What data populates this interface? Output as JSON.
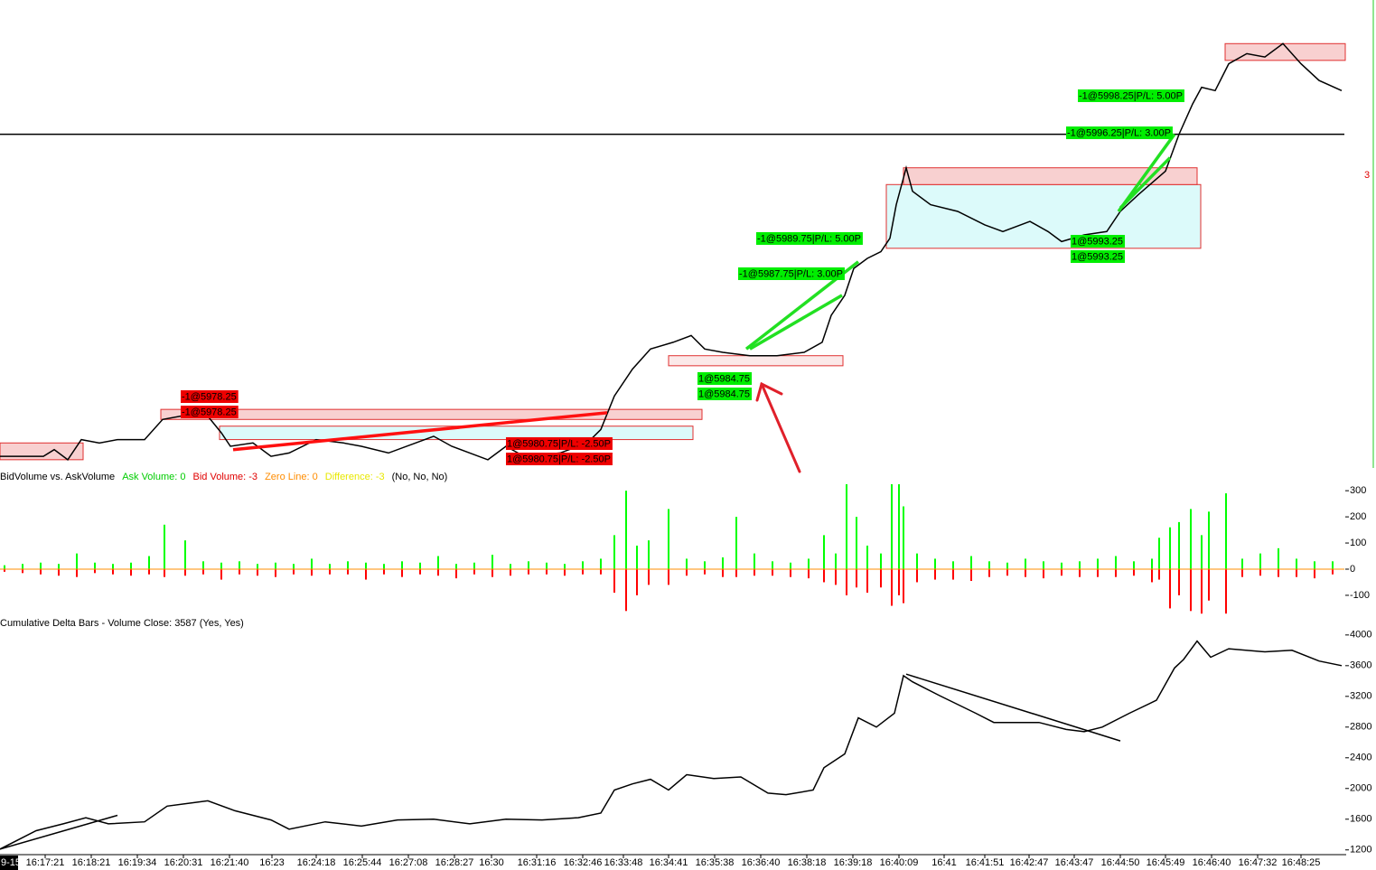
{
  "chart_data": [
    {
      "type": "line",
      "xlim": [
        0,
        1490
      ],
      "ylim": [
        5976,
        6011
      ],
      "series": [
        {
          "color": "#000000",
          "x": [
            0,
            48,
            60,
            75,
            90,
            110,
            130,
            160,
            180,
            200,
            230,
            245,
            255,
            280,
            300,
            320,
            350,
            380,
            400,
            430,
            460,
            480,
            500,
            520,
            540,
            560,
            580,
            620,
            650,
            665,
            680,
            700,
            720,
            745,
            765,
            780,
            800,
            830,
            860,
            890,
            910,
            920,
            935,
            945,
            960,
            975,
            985,
            992,
            1003,
            1010,
            1030,
            1060,
            1090,
            1110,
            1140,
            1160,
            1175,
            1200,
            1225,
            1240,
            1260,
            1290,
            1305,
            1320,
            1330,
            1345,
            1360,
            1380,
            1400,
            1420,
            1440,
            1460,
            1485
          ],
          "values": [
            5977.0,
            5977.0,
            5977.5,
            5976.75,
            5978.25,
            5978.0,
            5978.25,
            5978.25,
            5979.75,
            5980.0,
            5980.0,
            5978.75,
            5977.75,
            5978.0,
            5977.0,
            5977.25,
            5978.25,
            5978.0,
            5977.75,
            5977.25,
            5978.0,
            5978.5,
            5977.75,
            5977.25,
            5976.75,
            5977.75,
            5977.0,
            5977.25,
            5978.0,
            5979.0,
            5981.5,
            5983.5,
            5985.0,
            5985.5,
            5986.0,
            5985.0,
            5984.75,
            5984.5,
            5984.5,
            5984.75,
            5985.5,
            5987.5,
            5989.0,
            5991.0,
            5991.75,
            5992.25,
            5993.25,
            5995.75,
            5998.5,
            5996.75,
            5995.75,
            5995.25,
            5994.25,
            5993.75,
            5994.5,
            5993.75,
            5993.0,
            5993.5,
            5993.75,
            5995.25,
            5996.5,
            5998.25,
            6001.0,
            6003.25,
            6004.5,
            6004.25,
            6006.25,
            6007.0,
            6006.75,
            6007.75,
            6006.25,
            6005.0,
            6004.25
          ]
        }
      ],
      "hline": 6001.0,
      "zones": [
        {
          "x": [
            0,
            92
          ],
          "y": [
            5976.75,
            5978.0
          ],
          "fill": "#f8d0d0",
          "stroke": "#e03030"
        },
        {
          "x": [
            178,
            777
          ],
          "y": [
            5979.75,
            5980.5
          ],
          "fill": "#f8d0d0",
          "stroke": "#e03030"
        },
        {
          "x": [
            243,
            767
          ],
          "y": [
            5978.25,
            5979.25
          ],
          "fill": "#dcfafa",
          "stroke": "#e03030"
        },
        {
          "x": [
            740,
            933
          ],
          "y": [
            5983.75,
            5984.5
          ],
          "fill": "#fbe9e9",
          "stroke": "#e03030"
        },
        {
          "x": [
            981,
            1329
          ],
          "y": [
            5992.5,
            5997.25
          ],
          "fill": "#dcfafa",
          "stroke": "#e03030"
        },
        {
          "x": [
            1000,
            1325
          ],
          "y": [
            5997.25,
            5998.5
          ],
          "fill": "#f8d0d0",
          "stroke": "#e03030"
        },
        {
          "x": [
            1356,
            1489
          ],
          "y": [
            6006.5,
            6007.75
          ],
          "fill": "#f8d0d0",
          "stroke": "#e03030"
        }
      ],
      "trade_lines": [
        {
          "x": [
            258,
            672
          ],
          "y": [
            5977.5,
            5980.25
          ],
          "color": "#ff1010"
        },
        {
          "x": [
            826,
            950
          ],
          "y": [
            5985.0,
            5991.5
          ],
          "color": "#22e022"
        },
        {
          "x": [
            830,
            932
          ],
          "y": [
            5985.0,
            5989.0
          ],
          "color": "#22e022"
        },
        {
          "x": [
            1238,
            1300
          ],
          "y": [
            5995.25,
            6001.0
          ],
          "color": "#22e022"
        },
        {
          "x": [
            1240,
            1295
          ],
          "y": [
            5995.5,
            5999.25
          ],
          "color": "#22e022"
        }
      ],
      "order_labels": [
        {
          "text": "-1@5978.25",
          "color": "#ee0000"
        },
        {
          "text": "-1@5978.25",
          "color": "#ee0000"
        },
        {
          "text": "1@5980.75|P/L: -2.50P",
          "color": "#ee0000"
        },
        {
          "text": "1@5980.75|P/L: -2.50P",
          "color": "#ee0000"
        },
        {
          "text": "1@5984.75",
          "color": "#00ee00"
        },
        {
          "text": "1@5984.75",
          "color": "#00ee00"
        },
        {
          "text": "-1@5987.75|P/L: 3.00P",
          "color": "#00ee00"
        },
        {
          "text": "-1@5989.75|P/L: 5.00P",
          "color": "#00ee00"
        },
        {
          "text": "1@5993.25",
          "color": "#00ee00"
        },
        {
          "text": "1@5993.25",
          "color": "#00ee00"
        },
        {
          "text": "-1@5996.25|P/L: 3.00P",
          "color": "#00ee00"
        },
        {
          "text": "-1@5998.25|P/L: 5.00P",
          "color": "#00ee00"
        }
      ],
      "axis_label": "3"
    },
    {
      "type": "bar",
      "title": "BidVolume vs. AskVolume",
      "legend_items": [
        {
          "text": "Ask Volume: 0",
          "color": "#00cc00"
        },
        {
          "text": "Bid Volume: -3",
          "color": "#e00000"
        },
        {
          "text": "Zero Line: 0",
          "color": "#ff8c00"
        },
        {
          "text": "Difference: -3",
          "color": "#e8e800"
        },
        {
          "text": "(No, No, No)",
          "color": "#000000"
        }
      ],
      "xlim": [
        0,
        1490
      ],
      "ylim": [
        -190,
        380
      ],
      "yticks": [
        300,
        200,
        100,
        0,
        -100
      ],
      "x": [
        5,
        25,
        45,
        65,
        85,
        105,
        125,
        145,
        165,
        182,
        205,
        225,
        245,
        265,
        285,
        305,
        325,
        345,
        365,
        385,
        405,
        425,
        445,
        465,
        485,
        505,
        525,
        545,
        565,
        585,
        605,
        625,
        645,
        665,
        680,
        693,
        705,
        718,
        740,
        760,
        780,
        800,
        815,
        835,
        855,
        875,
        895,
        912,
        925,
        937,
        948,
        960,
        975,
        987,
        995,
        1000,
        1015,
        1035,
        1055,
        1075,
        1095,
        1115,
        1135,
        1155,
        1175,
        1195,
        1215,
        1235,
        1255,
        1275,
        1283,
        1295,
        1305,
        1318,
        1330,
        1338,
        1357,
        1375,
        1395,
        1415,
        1435,
        1455,
        1475
      ],
      "series": [
        {
          "color": "#00ff00",
          "values": [
            15,
            20,
            25,
            20,
            60,
            25,
            20,
            25,
            50,
            170,
            110,
            30,
            25,
            30,
            20,
            25,
            20,
            40,
            20,
            30,
            25,
            20,
            30,
            25,
            50,
            20,
            25,
            55,
            20,
            30,
            25,
            20,
            30,
            40,
            130,
            300,
            90,
            110,
            230,
            40,
            30,
            45,
            200,
            60,
            30,
            25,
            40,
            130,
            60,
            330,
            200,
            90,
            60,
            330,
            330,
            240,
            60,
            40,
            30,
            50,
            30,
            25,
            40,
            30,
            25,
            30,
            40,
            50,
            30,
            40,
            120,
            160,
            180,
            230,
            130,
            220,
            290,
            40,
            60,
            80,
            40,
            30,
            30
          ]
        },
        {
          "color": "#ff0000",
          "values": [
            -10,
            -15,
            -20,
            -25,
            -30,
            -15,
            -20,
            -25,
            -20,
            -30,
            -25,
            -20,
            -40,
            -20,
            -25,
            -30,
            -20,
            -25,
            -20,
            -20,
            -40,
            -20,
            -30,
            -20,
            -25,
            -35,
            -20,
            -30,
            -25,
            -20,
            -20,
            -25,
            -20,
            -20,
            -90,
            -160,
            -100,
            -60,
            -60,
            -25,
            -20,
            -30,
            -30,
            -25,
            -25,
            -30,
            -35,
            -50,
            -60,
            -100,
            -70,
            -90,
            -70,
            -140,
            -100,
            -130,
            -50,
            -40,
            -40,
            -45,
            -30,
            -25,
            -30,
            -35,
            -25,
            -30,
            -30,
            -30,
            -25,
            -50,
            -40,
            -150,
            -100,
            -160,
            -170,
            -120,
            -170,
            -30,
            -25,
            -30,
            -30,
            -35,
            -20
          ]
        }
      ]
    },
    {
      "type": "line",
      "title": "Cumulative Delta Bars - Volume  Close: 3587   (Yes, Yes)",
      "xlim": [
        0,
        1490
      ],
      "ylim": [
        1150,
        4210
      ],
      "yticks": [
        4000,
        3600,
        3200,
        2800,
        2400,
        2000,
        1600,
        1200
      ],
      "series": [
        {
          "color": "#000000",
          "x": [
            0,
            40,
            70,
            95,
            120,
            160,
            185,
            230,
            260,
            300,
            320,
            360,
            400,
            440,
            480,
            520,
            560,
            600,
            640,
            665,
            680,
            700,
            720,
            740,
            760,
            790,
            820,
            850,
            870,
            900,
            912,
            935,
            950,
            970,
            990,
            1000,
            1010,
            1040,
            1080,
            1100,
            1150,
            1180,
            1200,
            1220,
            1250,
            1280,
            1300,
            1310,
            1325,
            1340,
            1360,
            1400,
            1430,
            1460,
            1485
          ],
          "values": [
            1210,
            1450,
            1540,
            1620,
            1540,
            1565,
            1770,
            1840,
            1710,
            1590,
            1470,
            1565,
            1510,
            1590,
            1600,
            1540,
            1600,
            1590,
            1620,
            1680,
            1980,
            2060,
            2120,
            1980,
            2180,
            2130,
            2150,
            1940,
            1920,
            1980,
            2270,
            2450,
            2920,
            2800,
            2980,
            3470,
            3390,
            3210,
            2980,
            2860,
            2860,
            2770,
            2740,
            2800,
            2980,
            3150,
            3570,
            3680,
            3920,
            3710,
            3820,
            3780,
            3800,
            3660,
            3600
          ]
        }
      ],
      "trend_lines": [
        {
          "x": [
            0,
            130
          ],
          "y": [
            1210,
            1650
          ],
          "color": "#000000"
        },
        {
          "x": [
            1003,
            1240
          ],
          "y": [
            3490,
            2620
          ],
          "color": "#000000"
        }
      ],
      "date_label": "9-15",
      "xticks": [
        {
          "value": 50,
          "label": "16:17:21"
        },
        {
          "value": 101,
          "label": "16:18:21"
        },
        {
          "value": 152,
          "label": "16:19:34"
        },
        {
          "value": 203,
          "label": "16:20:31"
        },
        {
          "value": 254,
          "label": "16:21:40"
        },
        {
          "value": 301,
          "label": "16:23"
        },
        {
          "value": 350,
          "label": "16:24:18"
        },
        {
          "value": 401,
          "label": "16:25:44"
        },
        {
          "value": 452,
          "label": "16:27:08"
        },
        {
          "value": 503,
          "label": "16:28:27"
        },
        {
          "value": 544,
          "label": "16:30"
        },
        {
          "value": 594,
          "label": "16:31:16"
        },
        {
          "value": 645,
          "label": "16:32:46"
        },
        {
          "value": 690,
          "label": "16:33:48"
        },
        {
          "value": 740,
          "label": "16:34:41"
        },
        {
          "value": 791,
          "label": "16:35:38"
        },
        {
          "value": 842,
          "label": "16:36:40"
        },
        {
          "value": 893,
          "label": "16:38:18"
        },
        {
          "value": 944,
          "label": "16:39:18"
        },
        {
          "value": 995,
          "label": "16:40:09"
        },
        {
          "value": 1045,
          "label": "16:41"
        },
        {
          "value": 1090,
          "label": "16:41:51"
        },
        {
          "value": 1139,
          "label": "16:42:47"
        },
        {
          "value": 1189,
          "label": "16:43:47"
        },
        {
          "value": 1240,
          "label": "16:44:50"
        },
        {
          "value": 1290,
          "label": "16:45:49"
        },
        {
          "value": 1341,
          "label": "16:46:40"
        },
        {
          "value": 1392,
          "label": "16:47:32"
        },
        {
          "value": 1440,
          "label": "16:48:25"
        }
      ]
    }
  ]
}
